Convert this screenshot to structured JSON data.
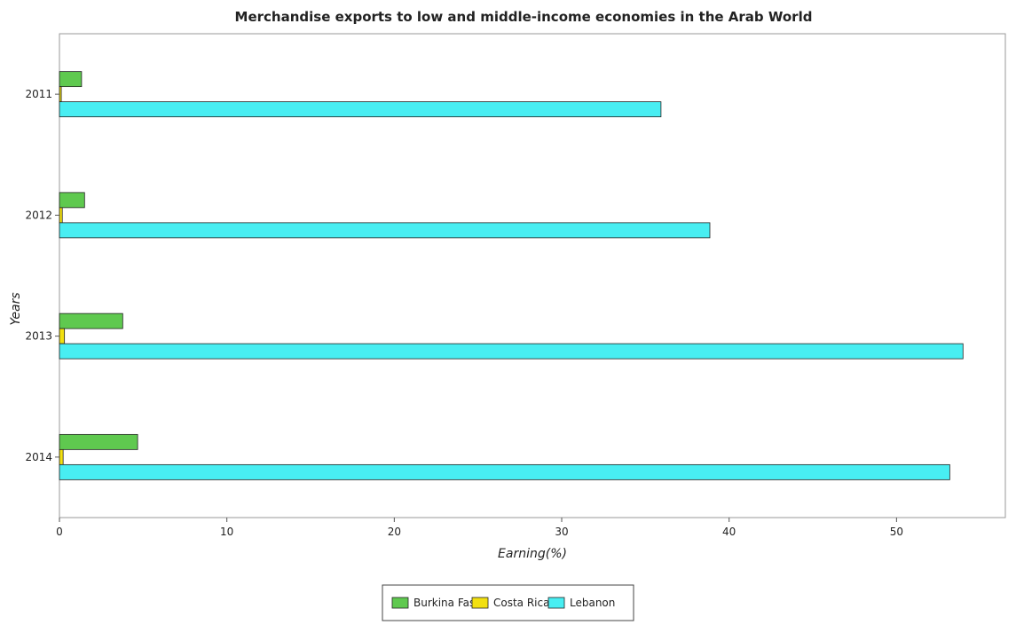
{
  "chart_data": {
    "type": "bar",
    "orientation": "horizontal",
    "title": "Merchandise exports to low and middle-income economies in the Arab World",
    "xlabel": "Earning(%)",
    "ylabel": "Years",
    "categories": [
      "2011",
      "2012",
      "2013",
      "2014"
    ],
    "xlim": [
      0,
      56.5
    ],
    "x_ticks": [
      0,
      10,
      20,
      30,
      40,
      50
    ],
    "grid": false,
    "legend_position": "bottom-center",
    "series": [
      {
        "name": "Burkina Faso",
        "color": "#5fc94f",
        "values": [
          1.32,
          1.5,
          3.78,
          4.67
        ]
      },
      {
        "name": "Costa Rica",
        "color": "#f2e010",
        "values": [
          0.11,
          0.17,
          0.3,
          0.22
        ]
      },
      {
        "name": "Lebanon",
        "color": "#48eef2",
        "values": [
          35.93,
          38.85,
          53.97,
          53.18
        ]
      }
    ]
  }
}
